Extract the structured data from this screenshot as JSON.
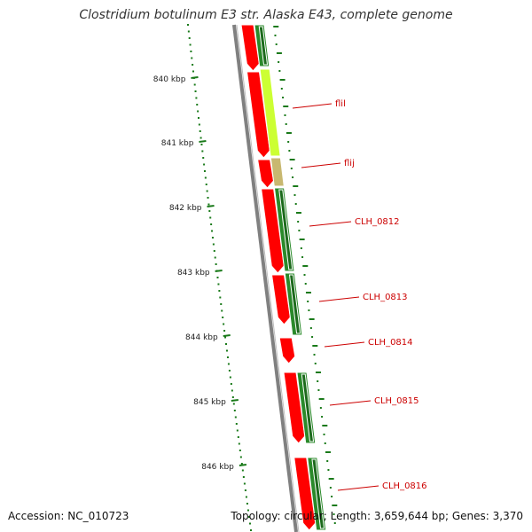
{
  "title": "Clostridium botulinum E3 str. Alaska E43, complete genome",
  "footer": {
    "accession": "Accession: NC_010723",
    "summary": "Topology: circular; Length: 3,659,644 bp; Genes: 3,370"
  },
  "ticks": [
    "840 kbp",
    "841 kbp",
    "842 kbp",
    "843 kbp",
    "844 kbp",
    "845 kbp",
    "846 kbp"
  ],
  "genes": [
    {
      "label": "flil"
    },
    {
      "label": "flij"
    },
    {
      "label": "CLH_0812"
    },
    {
      "label": "CLH_0813"
    },
    {
      "label": "CLH_0814"
    },
    {
      "label": "CLH_0815"
    },
    {
      "label": "CLH_0816"
    }
  ],
  "colors": {
    "red_track": "#ff0000",
    "green_track": "#2a8a2a",
    "highlight_track": "#ccff33",
    "backbone": "#808080",
    "tick": "#1a7a1a",
    "label": "#cc0000"
  }
}
